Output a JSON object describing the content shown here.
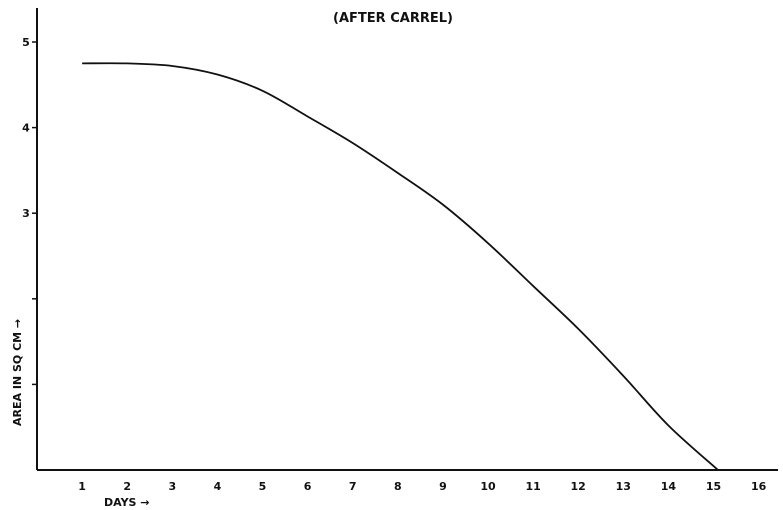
{
  "chart_data": {
    "type": "line",
    "title": "(AFTER CARREL)",
    "xlabel": "DAYS →",
    "ylabel": "AREA IN SQ CM →",
    "xlim": [
      0,
      16
    ],
    "ylim": [
      0,
      5
    ],
    "x_ticks": [
      1,
      2,
      3,
      4,
      5,
      6,
      7,
      8,
      9,
      10,
      11,
      12,
      13,
      14,
      15,
      16
    ],
    "y_ticks": [
      1,
      2,
      3,
      4,
      5
    ],
    "y_tick_labels": [
      "",
      "",
      "3",
      "4",
      "5"
    ],
    "grid": false,
    "series": [
      {
        "x": [
          1,
          2,
          3,
          4,
          5,
          6,
          7,
          8,
          9,
          10,
          11,
          12,
          13,
          14,
          15.1
        ],
        "y": [
          4.75,
          4.75,
          4.72,
          4.62,
          4.43,
          4.13,
          3.82,
          3.47,
          3.1,
          2.65,
          2.15,
          1.65,
          1.1,
          0.52,
          0
        ]
      }
    ]
  }
}
